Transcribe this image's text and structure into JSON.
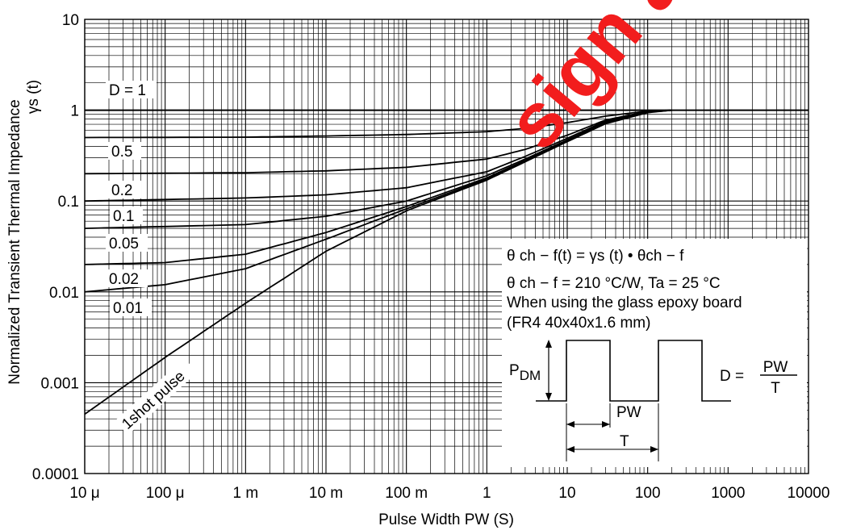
{
  "chart_data": {
    "type": "line",
    "xlabel": "Pulse Width   PW  (S)",
    "ylabel": "Normalized Transient Thermal Impedance",
    "ylabel2": "γs  (t)",
    "x_scale": "log",
    "y_scale": "log",
    "xlim": [
      1e-05,
      10000
    ],
    "ylim": [
      0.0001,
      10
    ],
    "grid": true,
    "x_ticks": [
      {
        "value": 1e-05,
        "label": "10 μ"
      },
      {
        "value": 0.0001,
        "label": "100 μ"
      },
      {
        "value": 0.001,
        "label": "1 m"
      },
      {
        "value": 0.01,
        "label": "10 m"
      },
      {
        "value": 0.1,
        "label": "100 m"
      },
      {
        "value": 1,
        "label": "1"
      },
      {
        "value": 10,
        "label": "10"
      },
      {
        "value": 100,
        "label": "100"
      },
      {
        "value": 1000,
        "label": "1000"
      },
      {
        "value": 10000,
        "label": "10000"
      }
    ],
    "y_ticks": [
      {
        "value": 0.0001,
        "label": "0.0001"
      },
      {
        "value": 0.001,
        "label": "0.001"
      },
      {
        "value": 0.01,
        "label": "0.01"
      },
      {
        "value": 0.1,
        "label": "0.1"
      },
      {
        "value": 1,
        "label": "1"
      },
      {
        "value": 10,
        "label": "10"
      }
    ],
    "series": [
      {
        "name": "D = 1",
        "x": [
          1e-05,
          10000
        ],
        "y": [
          1,
          1
        ]
      },
      {
        "name": "0.5",
        "x": [
          1e-05,
          0.001,
          0.01,
          0.1,
          1,
          3,
          10,
          30,
          100,
          200
        ],
        "y": [
          0.5,
          0.505,
          0.52,
          0.54,
          0.58,
          0.63,
          0.73,
          0.86,
          0.98,
          1
        ]
      },
      {
        "name": "0.2",
        "x": [
          1e-05,
          0.001,
          0.01,
          0.1,
          1,
          3,
          10,
          30,
          100,
          200
        ],
        "y": [
          0.2,
          0.205,
          0.215,
          0.235,
          0.29,
          0.37,
          0.53,
          0.78,
          0.97,
          1
        ]
      },
      {
        "name": "0.1",
        "x": [
          1e-05,
          0.001,
          0.01,
          0.1,
          1,
          3,
          10,
          30,
          100,
          200
        ],
        "y": [
          0.1,
          0.108,
          0.117,
          0.14,
          0.21,
          0.31,
          0.49,
          0.76,
          0.96,
          1
        ]
      },
      {
        "name": "0.05",
        "x": [
          1e-05,
          0.001,
          0.01,
          0.1,
          1,
          3,
          10,
          30,
          100,
          200
        ],
        "y": [
          0.05,
          0.055,
          0.068,
          0.1,
          0.19,
          0.29,
          0.47,
          0.74,
          0.96,
          1
        ]
      },
      {
        "name": "0.02",
        "x": [
          1e-05,
          0.0001,
          0.001,
          0.01,
          0.1,
          1,
          3,
          10,
          30,
          100,
          200
        ],
        "y": [
          0.02,
          0.021,
          0.026,
          0.045,
          0.087,
          0.18,
          0.28,
          0.46,
          0.73,
          0.95,
          1
        ]
      },
      {
        "name": "0.01",
        "x": [
          1e-05,
          0.0001,
          0.001,
          0.01,
          0.1,
          1,
          3,
          10,
          30,
          100,
          200
        ],
        "y": [
          0.01,
          0.012,
          0.018,
          0.038,
          0.082,
          0.175,
          0.275,
          0.455,
          0.72,
          0.95,
          1
        ]
      },
      {
        "name": "1shot pulse",
        "x": [
          1e-05,
          0.0001,
          0.001,
          0.01,
          0.1,
          1,
          3,
          10,
          30,
          100,
          200
        ],
        "y": [
          0.00045,
          0.0019,
          0.0075,
          0.028,
          0.078,
          0.17,
          0.27,
          0.45,
          0.71,
          0.94,
          1
        ]
      }
    ],
    "curve_labels": [
      "D = 1",
      "0.5",
      "0.2",
      "0.1",
      "0.05",
      "0.02",
      "0.01",
      "1shot pulse"
    ],
    "legend_box": {
      "line1": "θ ch − f(t) = γs (t) • θch − f",
      "line2": "θ ch − f = 210 °C/W, Ta = 25 °C",
      "line3": "When using the glass epoxy board",
      "line4": "(FR4  40x40x1.6 mm)",
      "pdm_label_main": "P",
      "pdm_label_sub": "DM",
      "pw_label": "PW",
      "t_label": "T",
      "d_eq_left": "D =",
      "d_eq_num": "PW",
      "d_eq_den": "T"
    },
    "watermark": "sign and"
  }
}
